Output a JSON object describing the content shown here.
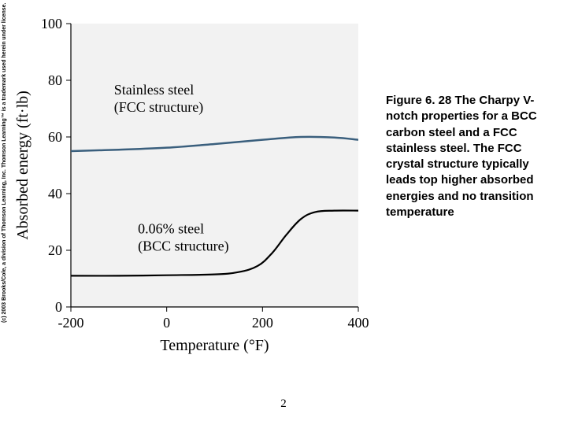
{
  "chart": {
    "type": "line",
    "background_color": "#ffffff",
    "plot_fill": "#f2f2f2",
    "axis_color": "#000000",
    "tick_color": "#000000",
    "tick_length": 6,
    "axis_line_width": 1.2,
    "xlabel": "Temperature (°F)",
    "ylabel": "Absorbed energy (ft·lb)",
    "label_fontsize": 20,
    "tick_fontsize": 18,
    "annotation_fontsize": 18,
    "xlim": [
      -200,
      400
    ],
    "ylim": [
      0,
      100
    ],
    "xticks": [
      -200,
      0,
      200,
      400
    ],
    "yticks": [
      0,
      20,
      40,
      60,
      80,
      100
    ],
    "series": [
      {
        "name": "stainless",
        "annotation_line1": "Stainless steel",
        "annotation_line2": "(FCC structure)",
        "annotation_x": -110,
        "annotation_y": 75,
        "color": "#3a5f7d",
        "line_width": 2.5,
        "x": [
          -200,
          -100,
          0,
          100,
          200,
          280,
          350,
          400
        ],
        "y": [
          55,
          55.5,
          56.2,
          57.5,
          59,
          60,
          59.8,
          59
        ]
      },
      {
        "name": "bcc",
        "annotation_line1": "0.06% steel",
        "annotation_line2": "(BCC structure)",
        "annotation_x": -60,
        "annotation_y": 26,
        "color": "#000000",
        "line_width": 2.2,
        "x": [
          -200,
          -100,
          0,
          100,
          150,
          190,
          220,
          250,
          280,
          310,
          350,
          400
        ],
        "y": [
          11,
          11,
          11.2,
          11.5,
          12.3,
          14.5,
          19,
          25.5,
          31,
          33.5,
          34,
          34
        ]
      }
    ]
  },
  "copyright": "(c) 2003 Brooks/Cole, a division of Thomson Learning, Inc. Thomson Learning™ is a trademark used herein under license.",
  "caption": "Figure 6. 28  The Charpy V-notch properties for a BCC carbon steel and a FCC stainless steel. The FCC crystal structure typically leads top higher absorbed energies and no transition temperature",
  "page_number": "2"
}
